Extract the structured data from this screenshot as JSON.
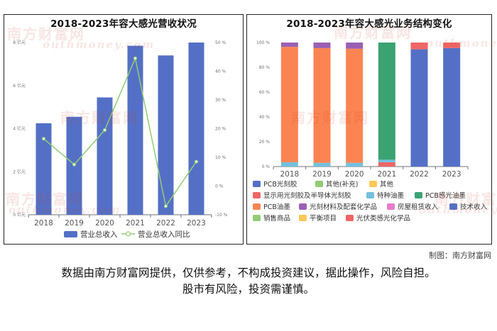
{
  "credit": "制图：南方财富网",
  "disclaimer": {
    "line1": "数据由南方财富网提供，仅供参考，不构成投资建议，据此操作，风险自担。",
    "line2": "股市有风险，投资需谨慎。"
  },
  "watermark": {
    "text": "南方财富网",
    "url": "outhmoney.com"
  },
  "colors": {
    "bar": "#5470c6",
    "line": "#91cc75"
  },
  "chart_data": [
    {
      "type": "bar",
      "title": "2018-2023年容大感光营收状况",
      "categories": [
        "2018",
        "2019",
        "2020",
        "2021",
        "2022",
        "2023"
      ],
      "series": [
        {
          "name": "营业总收入",
          "type": "bar",
          "axis": "left",
          "values": [
            4.25,
            4.55,
            5.45,
            7.85,
            7.4,
            8.0
          ]
        },
        {
          "name": "营业总收入同比",
          "type": "line",
          "axis": "right",
          "values": [
            16.5,
            7.5,
            19.5,
            44.5,
            -7.0,
            8.5
          ]
        }
      ],
      "y_left": {
        "ylim": [
          0,
          8
        ],
        "ticks": [
          0,
          2,
          4,
          6,
          8
        ],
        "tick_labels": [
          "0 亿元",
          "2 亿元",
          "4 亿元",
          "6 亿元",
          "8 亿元"
        ]
      },
      "y_right": {
        "ylim": [
          -10,
          50
        ],
        "ticks": [
          -10,
          0,
          10,
          20,
          30,
          40,
          50
        ],
        "tick_labels": [
          "-10 %",
          "0 %",
          "10 %",
          "20 %",
          "30 %",
          "40 %",
          "50 %"
        ]
      },
      "legend": "bottom",
      "grid": false
    },
    {
      "type": "bar",
      "stacked": true,
      "title": "2018-2023年容大感光业务结构变化",
      "categories": [
        "2018",
        "2019",
        "2020",
        "2021",
        "2022",
        "2023"
      ],
      "ylim": [
        0,
        100
      ],
      "y_ticks": [
        0,
        20,
        40,
        60,
        80,
        100
      ],
      "y_tick_labels": [
        "0 %",
        "20 %",
        "40 %",
        "60 %",
        "80 %",
        "100 %"
      ],
      "series": [
        {
          "name": "PCB光刻胶",
          "color": "#5470c6",
          "values": [
            0,
            0,
            0,
            0,
            0,
            0
          ]
        },
        {
          "name": "其他(补充)",
          "color": "#91cc75",
          "values": [
            0,
            0,
            0,
            0,
            0,
            0
          ]
        },
        {
          "name": "其他",
          "color": "#fac858",
          "values": [
            0,
            0,
            0,
            0,
            0,
            0
          ]
        },
        {
          "name": "显示用光刻胶及半导体光刻胶",
          "color": "#ee6666",
          "values": [
            0,
            0,
            0,
            3.5,
            0,
            0
          ]
        },
        {
          "name": "特种油墨",
          "color": "#73c0de",
          "values": [
            3.5,
            3,
            3,
            2,
            0,
            0
          ]
        },
        {
          "name": "PCB感光油墨",
          "color": "#3ba272",
          "values": [
            0,
            0,
            0,
            94.5,
            0,
            0
          ]
        },
        {
          "name": "PCB油墨",
          "color": "#fc8452",
          "values": [
            93,
            92.5,
            92,
            0,
            0,
            0
          ]
        },
        {
          "name": "光刻材料及配套化学品",
          "color": "#9a60b4",
          "values": [
            3.5,
            4.5,
            5,
            0,
            0,
            0
          ]
        },
        {
          "name": "房屋租赁收入",
          "color": "#ea7ccc",
          "values": [
            0,
            0,
            0,
            0,
            0,
            0
          ]
        },
        {
          "name": "技术收入",
          "color": "#5470c6",
          "values": [
            0,
            0,
            0,
            0,
            94.5,
            95.5
          ]
        },
        {
          "name": "销售商品",
          "color": "#91cc75",
          "values": [
            0,
            0,
            0,
            0,
            0,
            0
          ]
        },
        {
          "name": "平衡项目",
          "color": "#fac858",
          "values": [
            0,
            0,
            0,
            0,
            0,
            0
          ]
        },
        {
          "name": "光伏类感光化学品",
          "color": "#ee6666",
          "values": [
            0,
            0,
            0,
            0,
            5.5,
            4.5
          ]
        }
      ],
      "legend": "bottom",
      "grid": false
    }
  ]
}
